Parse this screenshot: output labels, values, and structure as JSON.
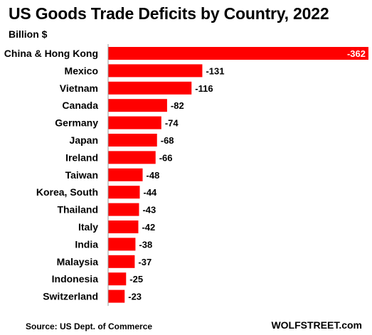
{
  "chart_data": {
    "type": "bar",
    "orientation": "horizontal",
    "title": "US Goods Trade Deficits by Country, 2022",
    "subtitle": "Billion $",
    "categories": [
      "China & Hong Kong",
      "Mexico",
      "Vietnam",
      "Canada",
      "Germany",
      "Japan",
      "Ireland",
      "Taiwan",
      "Korea, South",
      "Thailand",
      "Italy",
      "India",
      "Malaysia",
      "Indonesia",
      "Switzerland"
    ],
    "values": [
      -362,
      -131,
      -116,
      -82,
      -74,
      -68,
      -66,
      -48,
      -44,
      -43,
      -42,
      -38,
      -37,
      -25,
      -23
    ],
    "labels": [
      "-362",
      "-131",
      "-116",
      "-82",
      "-74",
      "-68",
      "-66",
      "-48",
      "-44",
      "-43",
      "-42",
      "-38",
      "-37",
      "-25",
      "-23"
    ],
    "xlim": [
      0,
      -362
    ],
    "bar_color": "#ff0000",
    "grid": false,
    "legend": "none"
  },
  "footer": {
    "source": "Source: US Dept. of Commerce",
    "brand": "WOLFSTREET.com"
  }
}
